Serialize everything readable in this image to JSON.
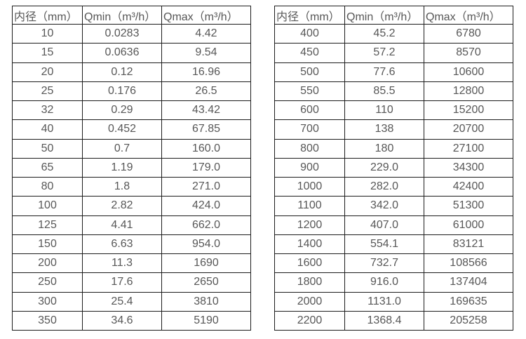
{
  "colors": {
    "background": "#ffffff",
    "border": "#1c1c1c",
    "text": "#575757"
  },
  "tables": [
    {
      "name": "flow-table-small-diameters",
      "headers": [
        "内径（mm）",
        "Qmin（m³/h）",
        "Qmax（m³/h）"
      ],
      "rows": [
        [
          "10",
          "0.0283",
          "4.42"
        ],
        [
          "15",
          "0.0636",
          "9.54"
        ],
        [
          "20",
          "0.12",
          "16.96"
        ],
        [
          "25",
          "0.176",
          "26.5"
        ],
        [
          "32",
          "0.29",
          "43.42"
        ],
        [
          "40",
          "0.452",
          "67.85"
        ],
        [
          "50",
          "0.7",
          "160.0"
        ],
        [
          "65",
          "1.19",
          "179.0"
        ],
        [
          "80",
          "1.8",
          "271.0"
        ],
        [
          "100",
          "2.82",
          "424.0"
        ],
        [
          "125",
          "4.41",
          "662.0"
        ],
        [
          "150",
          "6.63",
          "954.0"
        ],
        [
          "200",
          "11.3",
          "1690"
        ],
        [
          "250",
          "17.6",
          "2650"
        ],
        [
          "300",
          "25.4",
          "3810"
        ],
        [
          "350",
          "34.6",
          "5190"
        ]
      ]
    },
    {
      "name": "flow-table-large-diameters",
      "headers": [
        "内径（mm）",
        "Qmin（m³/h）",
        "Qmax（m³/h）"
      ],
      "rows": [
        [
          "400",
          "45.2",
          "6780"
        ],
        [
          "450",
          "57.2",
          "8570"
        ],
        [
          "500",
          "77.6",
          "10600"
        ],
        [
          "550",
          "85.5",
          "12800"
        ],
        [
          "600",
          "110",
          "15200"
        ],
        [
          "700",
          "138",
          "20700"
        ],
        [
          "800",
          "180",
          "27100"
        ],
        [
          "900",
          "229.0",
          "34300"
        ],
        [
          "1000",
          "282.0",
          "42400"
        ],
        [
          "1100",
          "342.0",
          "51300"
        ],
        [
          "1200",
          "407.0",
          "61000"
        ],
        [
          "1400",
          "554.1",
          "83121"
        ],
        [
          "1600",
          "732.7",
          "108566"
        ],
        [
          "1800",
          "916.0",
          "137404"
        ],
        [
          "2000",
          "1131.0",
          "169635"
        ],
        [
          "2200",
          "1368.4",
          "205258"
        ]
      ]
    }
  ]
}
